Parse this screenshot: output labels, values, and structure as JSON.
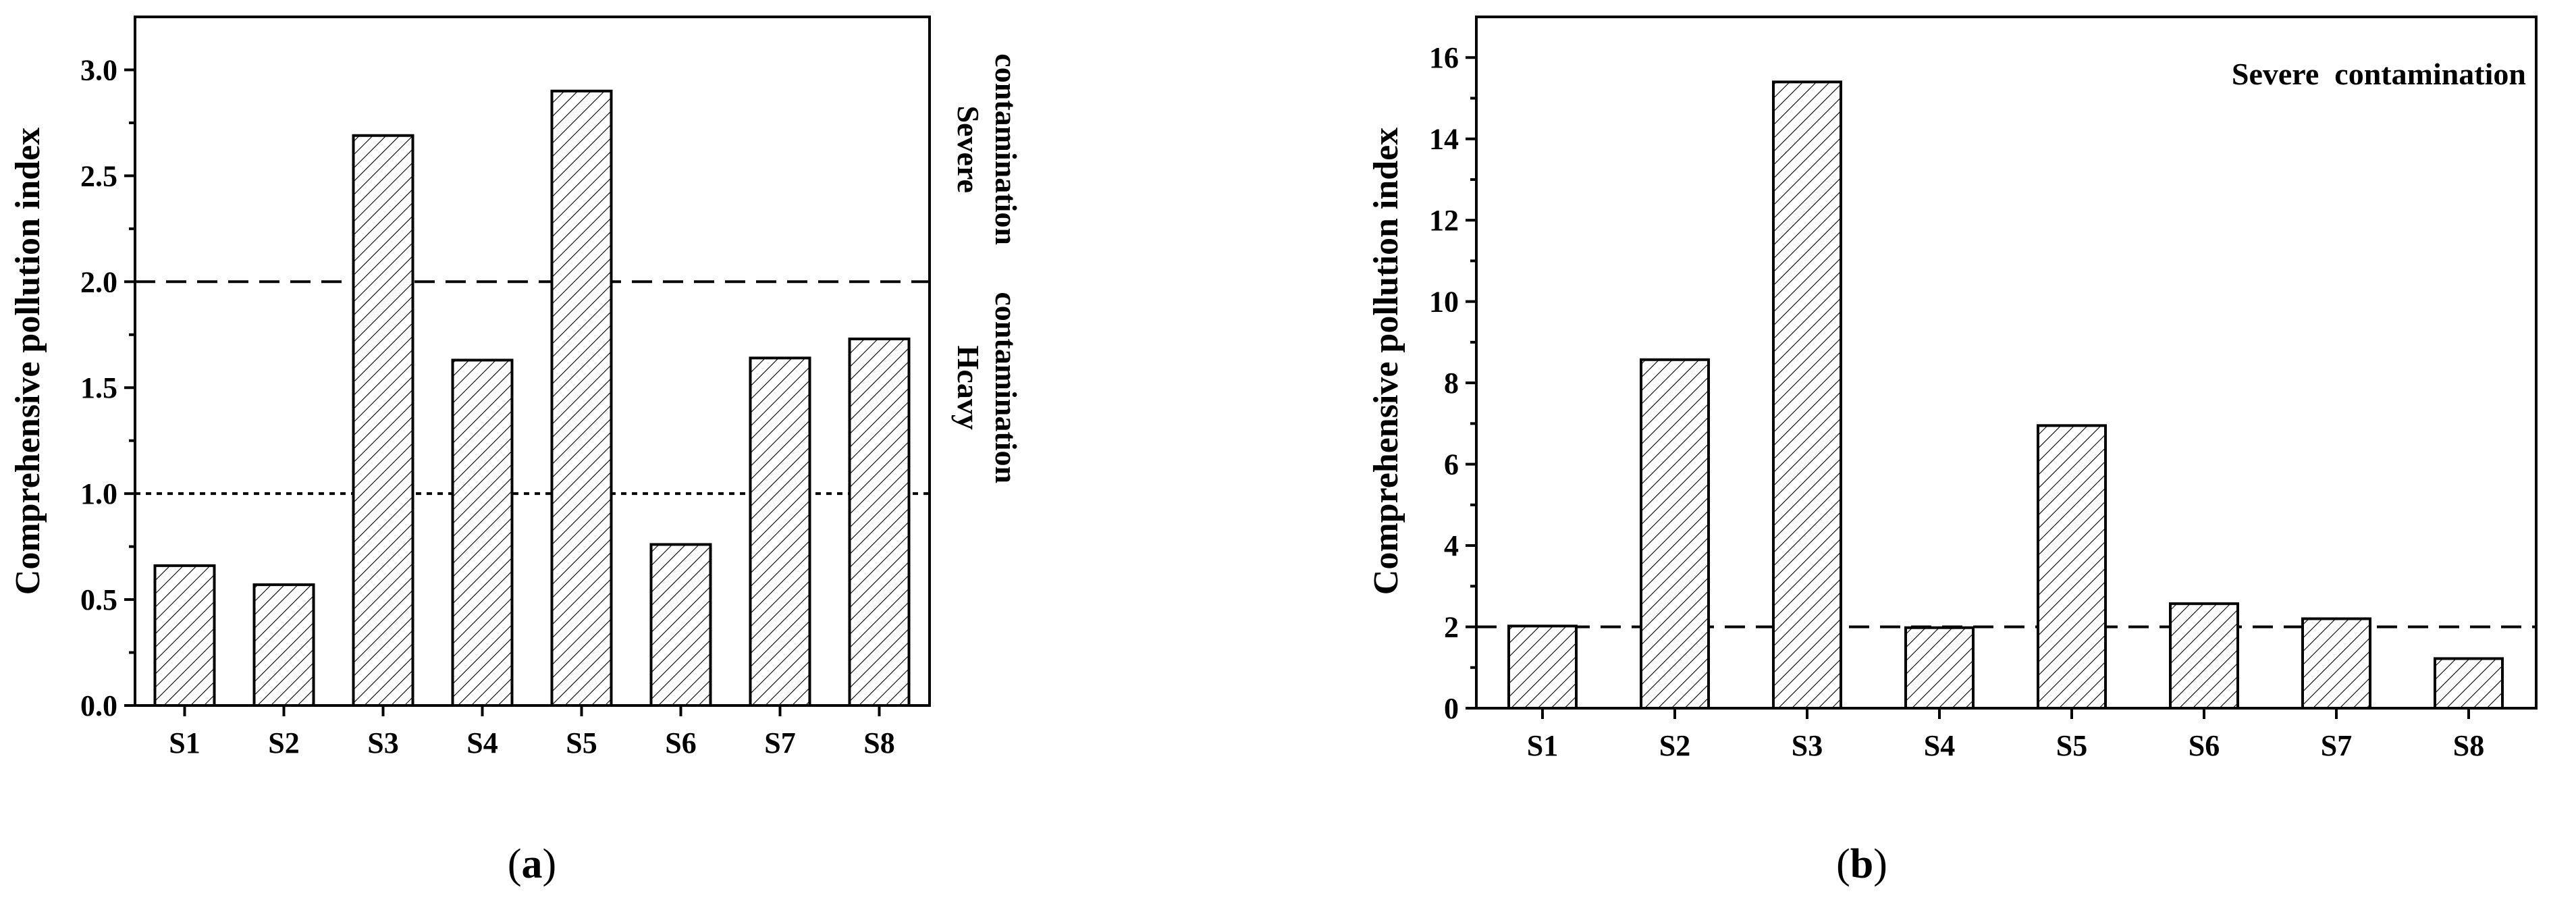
{
  "chart_data": [
    {
      "type": "bar",
      "panel": "(a)",
      "panel_letter": "a",
      "categories": [
        "S1",
        "S2",
        "S3",
        "S4",
        "S5",
        "S6",
        "S7",
        "S8"
      ],
      "values": [
        0.66,
        0.57,
        2.69,
        1.63,
        2.9,
        0.76,
        1.64,
        1.73
      ],
      "ylabel": "Comprehensive pollution index",
      "xlabel": "",
      "ylim": [
        0,
        3.25
      ],
      "yticks": [
        "0.0",
        "0.5",
        "1.0",
        "1.5",
        "2.0",
        "2.5",
        "3.0"
      ],
      "reference_lines": [
        {
          "value": 2.0,
          "style": "dashed"
        },
        {
          "value": 1.0,
          "style": "dotted"
        }
      ],
      "right_annotations": [
        {
          "lines": [
            "Severe",
            "contamination"
          ],
          "range": [
            2.0,
            3.25
          ]
        },
        {
          "lines": [
            "Hcavy",
            "contamination"
          ],
          "range": [
            1.0,
            2.0
          ]
        }
      ],
      "fill": "diagonal hatch",
      "grid": false
    },
    {
      "type": "bar",
      "panel": "(b)",
      "panel_letter": "b",
      "categories": [
        "S1",
        "S2",
        "S3",
        "S4",
        "S5",
        "S6",
        "S7",
        "S8"
      ],
      "values": [
        2.02,
        8.57,
        15.4,
        1.98,
        6.95,
        2.57,
        2.2,
        1.22
      ],
      "ylabel": "Comprehensive pollution index",
      "xlabel": "",
      "ylim": [
        0,
        17
      ],
      "yticks": [
        "0",
        "2",
        "4",
        "6",
        "8",
        "10",
        "12",
        "14",
        "16"
      ],
      "reference_lines": [
        {
          "value": 2.0,
          "style": "dashed"
        }
      ],
      "annotation": "Severe  contamination",
      "annotation_position": "top-right",
      "fill": "diagonal hatch",
      "grid": false
    }
  ]
}
